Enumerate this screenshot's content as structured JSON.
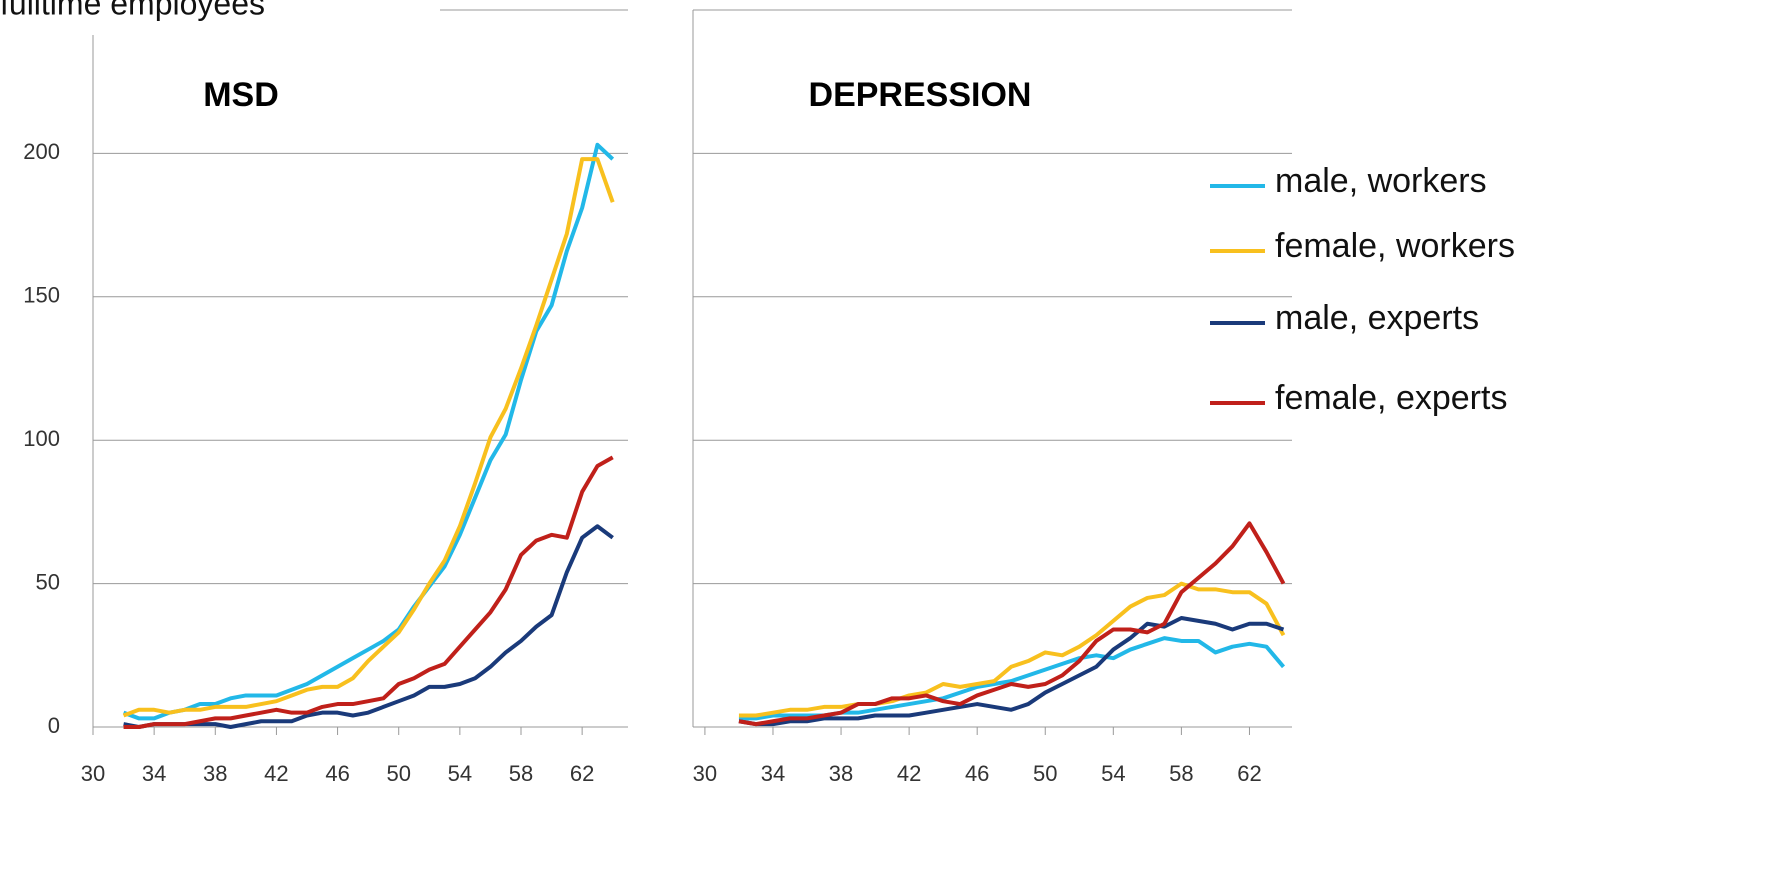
{
  "chart_data": [
    {
      "type": "line",
      "subtitle": "fulltime employees",
      "title": "MSD",
      "x": [
        32,
        33,
        34,
        35,
        36,
        37,
        38,
        39,
        40,
        41,
        42,
        43,
        44,
        45,
        46,
        47,
        48,
        49,
        50,
        51,
        52,
        53,
        54,
        55,
        56,
        57,
        58,
        59,
        60,
        61,
        62,
        63,
        64
      ],
      "xlim": [
        30,
        65
      ],
      "xticks": [
        30,
        34,
        38,
        42,
        46,
        50,
        54,
        58,
        62
      ],
      "ylim": [
        0,
        250
      ],
      "yticks": [
        0,
        50,
        100,
        150,
        200
      ],
      "grid": true,
      "series": [
        {
          "color": "#22b8e8",
          "values": [
            5,
            3,
            3,
            5,
            6,
            8,
            8,
            10,
            11,
            11,
            11,
            13,
            15,
            18,
            21,
            24,
            27,
            30,
            34,
            42,
            49,
            56,
            67,
            80,
            93,
            102,
            121,
            138,
            147,
            166,
            181,
            203,
            198
          ]
        },
        {
          "color": "#f8c01e",
          "values": [
            4,
            6,
            6,
            5,
            6,
            6,
            7,
            7,
            7,
            8,
            9,
            11,
            13,
            14,
            14,
            17,
            23,
            28,
            33,
            41,
            50,
            58,
            70,
            85,
            101,
            111,
            125,
            140,
            156,
            172,
            198,
            198,
            183
          ]
        },
        {
          "color": "#1a3a7a",
          "values": [
            1,
            0,
            1,
            1,
            1,
            1,
            1,
            0,
            1,
            2,
            2,
            2,
            4,
            5,
            5,
            4,
            5,
            7,
            9,
            11,
            14,
            14,
            15,
            17,
            21,
            26,
            30,
            35,
            39,
            54,
            66,
            70,
            66
          ]
        },
        {
          "color": "#c0201a",
          "values": [
            0,
            0,
            1,
            1,
            1,
            2,
            3,
            3,
            4,
            5,
            6,
            5,
            5,
            7,
            8,
            8,
            9,
            10,
            15,
            17,
            20,
            22,
            28,
            34,
            40,
            48,
            60,
            65,
            67,
            66,
            82,
            91,
            94
          ]
        }
      ]
    },
    {
      "type": "line",
      "title": "DEPRESSION",
      "x": [
        32,
        33,
        34,
        35,
        36,
        37,
        38,
        39,
        40,
        41,
        42,
        43,
        44,
        45,
        46,
        47,
        48,
        49,
        50,
        51,
        52,
        53,
        54,
        55,
        56,
        57,
        58,
        59,
        60,
        61,
        62,
        63,
        64
      ],
      "xlim": [
        29.3,
        64.5
      ],
      "xticks": [
        30,
        34,
        38,
        42,
        46,
        50,
        54,
        58,
        62
      ],
      "ylim": [
        0,
        250
      ],
      "yticks": [
        0,
        50,
        100,
        150,
        200
      ],
      "grid": true,
      "series": [
        {
          "name": "male, workers",
          "color": "#22b8e8",
          "values": [
            3,
            3,
            4,
            4,
            4,
            4,
            5,
            5,
            6,
            7,
            8,
            9,
            10,
            12,
            14,
            15,
            16,
            18,
            20,
            22,
            24,
            25,
            24,
            27,
            29,
            31,
            30,
            30,
            26,
            28,
            29,
            28,
            21
          ]
        },
        {
          "name": "female, workers",
          "color": "#f8c01e",
          "values": [
            4,
            4,
            5,
            6,
            6,
            7,
            7,
            8,
            8,
            9,
            11,
            12,
            15,
            14,
            15,
            16,
            21,
            23,
            26,
            25,
            28,
            32,
            37,
            42,
            45,
            46,
            50,
            48,
            48,
            47,
            47,
            43,
            32
          ]
        },
        {
          "name": "male, experts",
          "color": "#1a3a7a",
          "values": [
            2,
            1,
            1,
            2,
            2,
            3,
            3,
            3,
            4,
            4,
            4,
            5,
            6,
            7,
            8,
            7,
            6,
            8,
            12,
            15,
            18,
            21,
            27,
            31,
            36,
            35,
            38,
            37,
            36,
            34,
            36,
            36,
            34
          ]
        },
        {
          "name": "female, experts",
          "color": "#c0201a",
          "values": [
            2,
            1,
            2,
            3,
            3,
            4,
            5,
            8,
            8,
            10,
            10,
            11,
            9,
            8,
            11,
            13,
            15,
            14,
            15,
            18,
            23,
            30,
            34,
            34,
            33,
            36,
            47,
            52,
            57,
            63,
            71,
            61,
            50
          ]
        }
      ]
    }
  ]
}
